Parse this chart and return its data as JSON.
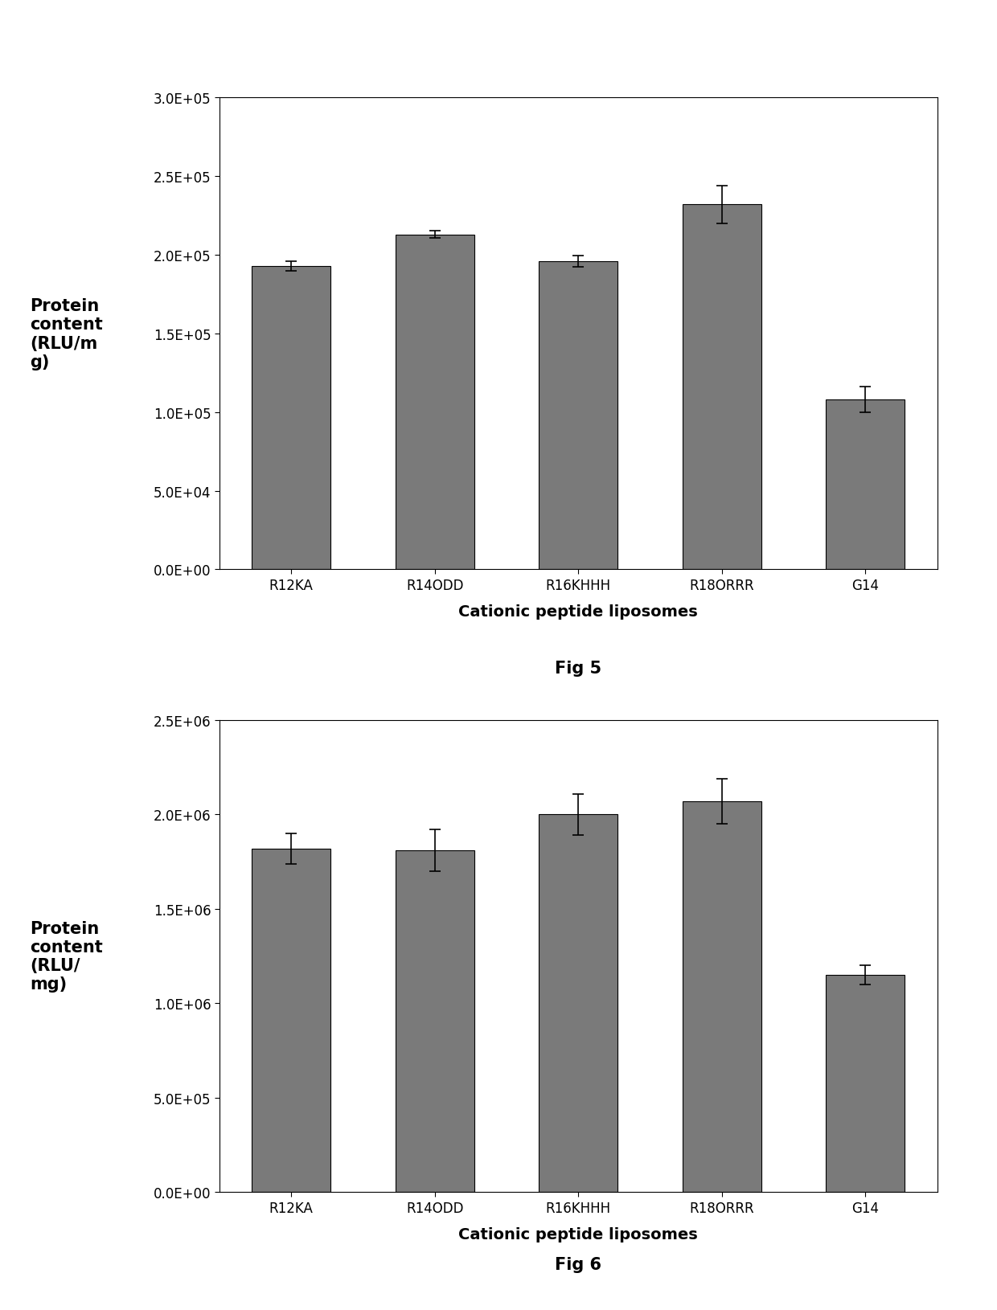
{
  "fig5": {
    "categories": [
      "R12KA",
      "R14ODD",
      "R16KHHH",
      "R18ORRR",
      "G14"
    ],
    "values": [
      193000.0,
      213000.0,
      196000.0,
      232000.0,
      108000.0
    ],
    "errors": [
      3000,
      2500,
      3500,
      12000,
      8000
    ],
    "ylim": [
      0,
      300000.0
    ],
    "yticks": [
      0,
      50000.0,
      100000.0,
      150000.0,
      200000.0,
      250000.0,
      300000.0
    ],
    "ylabel_lines": [
      "Protein",
      "content",
      "(RLU/m",
      "g)"
    ],
    "xlabel": "Cationic peptide liposomes",
    "title": "Fig 5"
  },
  "fig6": {
    "categories": [
      "R12KA",
      "R14ODD",
      "R16KHHH",
      "R18ORRR",
      "G14"
    ],
    "values": [
      1820000.0,
      1810000.0,
      2000000.0,
      2070000.0,
      1150000.0
    ],
    "errors": [
      80000.0,
      110000.0,
      110000.0,
      120000.0,
      50000.0
    ],
    "ylim": [
      0,
      2500000.0
    ],
    "yticks": [
      0,
      500000.0,
      1000000.0,
      1500000.0,
      2000000.0,
      2500000.0
    ],
    "ylabel_lines": [
      "Protein",
      "content",
      "(RLU/",
      "mg)"
    ],
    "xlabel": "Cationic peptide liposomes",
    "title": "Fig 6"
  },
  "figure_bg": "#ffffff",
  "bar_color": "#7a7a7a",
  "bar_edge_color": "#000000",
  "error_color": "#000000",
  "tick_fontsize": 12,
  "label_fontsize": 13,
  "title_fontsize": 15,
  "ylabel_fontsize": 15,
  "xlabel_fontsize": 14
}
